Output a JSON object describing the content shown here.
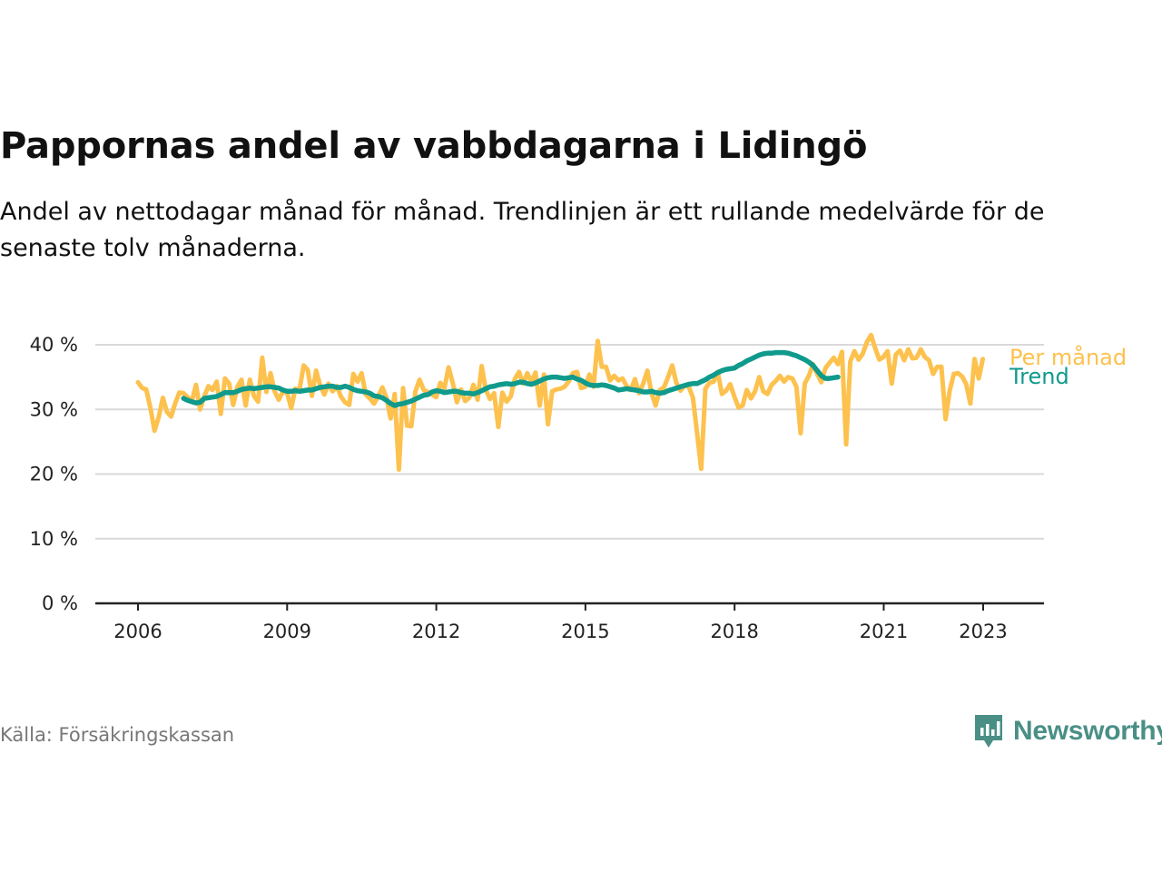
{
  "header": {
    "title": "Pappornas andel av vabbdagarna i Lidingö",
    "subtitle": "Andel av nettodagar månad för månad. Trendlinjen är ett rullande medelvärde för de senaste tolv månaderna."
  },
  "footer": {
    "source": "Källa: Försäkringskassan",
    "brand": "Newsworthy"
  },
  "colors": {
    "monthly": "#fdc14e",
    "trend": "#0f9a8c",
    "grid": "#d9d9d9",
    "axis": "#222222",
    "brand": "#4a8f86"
  },
  "chart_data": {
    "type": "line",
    "x_unit": "year",
    "ylim": [
      0,
      40
    ],
    "y_ticks": [
      0,
      10,
      20,
      30,
      40
    ],
    "y_tick_labels": [
      "0 %",
      "10 %",
      "20 %",
      "30 %",
      "40 %"
    ],
    "x_ticks": [
      2006,
      2009,
      2012,
      2015,
      2018,
      2021,
      2023
    ],
    "x_tick_labels": [
      "2006",
      "2009",
      "2012",
      "2015",
      "2018",
      "2021",
      "2023"
    ],
    "xlim": [
      2005,
      2024.2
    ],
    "grid": true,
    "legend": "inline-right",
    "series": [
      {
        "name": "Per månad",
        "color": "#fdc14e",
        "start": 2006.0,
        "step": 0.0833,
        "values": [
          34.2,
          33.3,
          33.1,
          30.2,
          26.7,
          28.8,
          31.8,
          29.6,
          28.9,
          31.0,
          32.6,
          32.5,
          31.9,
          31.2,
          33.8,
          30.0,
          32.0,
          33.6,
          33.0,
          34.3,
          29.3,
          34.8,
          34.0,
          30.7,
          33.5,
          34.6,
          30.6,
          34.6,
          32.1,
          31.2,
          38.0,
          32.7,
          35.6,
          32.8,
          31.5,
          32.8,
          32.6,
          30.2,
          33.2,
          33.0,
          36.8,
          36.1,
          32.1,
          36.0,
          33.7,
          32.3,
          34.0,
          32.8,
          33.6,
          32.0,
          31.1,
          30.7,
          35.5,
          34.3,
          35.6,
          32.3,
          31.7,
          30.9,
          32.0,
          33.4,
          31.8,
          28.6,
          32.4,
          20.7,
          33.3,
          27.5,
          27.4,
          32.8,
          34.6,
          33.0,
          32.7,
          32.3,
          31.9,
          34.1,
          33.3,
          36.5,
          34.1,
          31.1,
          33.1,
          31.3,
          31.8,
          33.8,
          31.5,
          36.7,
          33.0,
          31.6,
          32.5,
          27.3,
          32.6,
          31.2,
          32.0,
          34.7,
          35.8,
          34.0,
          35.6,
          34.3,
          35.7,
          30.6,
          35.4,
          27.7,
          32.8,
          33.1,
          33.2,
          33.5,
          34.3,
          35.6,
          35.8,
          33.3,
          33.5,
          35.4,
          33.5,
          40.6,
          36.6,
          36.6,
          34.5,
          35.2,
          34.5,
          34.8,
          33.6,
          33.0,
          34.7,
          32.5,
          34.0,
          36.0,
          32.5,
          30.6,
          33.0,
          33.4,
          35.0,
          36.8,
          34.1,
          32.9,
          33.7,
          33.5,
          31.8,
          26.3,
          20.8,
          33.2,
          34.1,
          34.3,
          35.8,
          32.4,
          32.9,
          33.9,
          32.0,
          30.3,
          30.6,
          33.0,
          31.7,
          32.8,
          35.0,
          32.8,
          32.4,
          33.8,
          34.4,
          35.2,
          34.3,
          35.0,
          34.8,
          33.5,
          26.3,
          34.0,
          35.2,
          37.0,
          35.5,
          34.2,
          36.4,
          37.2,
          38.0,
          37.0,
          38.9,
          24.6,
          37.4,
          39.0,
          37.7,
          38.6,
          40.4,
          41.5,
          39.5,
          37.7,
          38.1,
          39.0,
          34.0,
          38.5,
          39.1,
          37.6,
          39.3,
          37.9,
          38.0,
          39.3,
          38.1,
          37.6,
          35.5,
          36.6,
          36.6,
          28.5,
          32.9,
          35.5,
          35.6,
          35.1,
          33.9,
          30.9,
          37.8,
          34.8,
          37.8
        ]
      },
      {
        "name": "Trend",
        "color": "#0f9a8c",
        "start": 2006.917,
        "step": 0.0833,
        "values": [
          31.7,
          31.4,
          31.2,
          31.0,
          31.1,
          31.7,
          31.8,
          31.9,
          32.0,
          32.3,
          32.6,
          32.6,
          32.6,
          32.8,
          33.1,
          33.2,
          33.3,
          33.2,
          33.3,
          33.4,
          33.5,
          33.5,
          33.4,
          33.3,
          33.0,
          32.8,
          32.8,
          32.9,
          32.8,
          32.9,
          33.0,
          33.0,
          33.2,
          33.4,
          33.5,
          33.6,
          33.6,
          33.4,
          33.4,
          33.6,
          33.4,
          33.1,
          32.9,
          32.8,
          32.7,
          32.5,
          32.1,
          32.0,
          31.8,
          31.4,
          30.9,
          30.6,
          30.8,
          30.9,
          31.1,
          31.3,
          31.6,
          31.9,
          32.2,
          32.3,
          32.7,
          32.9,
          32.8,
          32.6,
          32.7,
          32.8,
          32.8,
          32.6,
          32.5,
          32.5,
          32.4,
          32.6,
          32.9,
          33.2,
          33.5,
          33.6,
          33.8,
          33.9,
          34.0,
          33.9,
          34.0,
          34.2,
          34.2,
          34.0,
          33.9,
          34.1,
          34.4,
          34.7,
          34.9,
          35.0,
          35.0,
          34.9,
          34.8,
          34.9,
          35.0,
          34.7,
          34.5,
          34.1,
          33.8,
          33.7,
          33.7,
          33.8,
          33.7,
          33.5,
          33.3,
          33.0,
          33.1,
          33.2,
          33.1,
          33.0,
          32.9,
          32.7,
          32.7,
          32.8,
          32.6,
          32.5,
          32.6,
          32.9,
          33.1,
          33.3,
          33.5,
          33.7,
          33.9,
          34.0,
          34.0,
          34.3,
          34.6,
          35.0,
          35.3,
          35.7,
          36.0,
          36.2,
          36.3,
          36.4,
          36.8,
          37.1,
          37.5,
          37.8,
          38.1,
          38.4,
          38.6,
          38.7,
          38.7,
          38.8,
          38.8,
          38.8,
          38.7,
          38.5,
          38.3,
          38.0,
          37.7,
          37.3,
          36.8,
          36.0,
          35.2,
          34.8,
          34.8,
          34.9,
          35.0
        ]
      }
    ]
  }
}
